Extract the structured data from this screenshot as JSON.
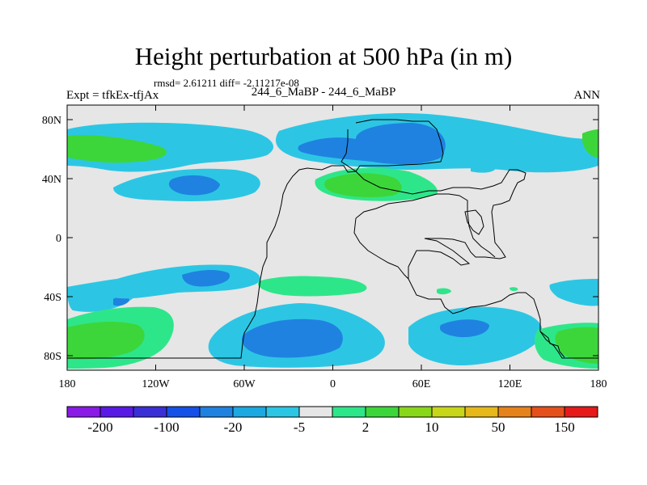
{
  "title": "Height perturbation at 500 hPa (in m)",
  "stats": "rmsd= 2.61211 diff= -2.11217e-08",
  "left_label": "Expt = tfkEx-tfjAx",
  "center_label": "244_6_MaBP - 244_6_MaBP",
  "right_label": "ANN",
  "map": {
    "lat_ticks": [
      "80N",
      "40N",
      "0",
      "40S",
      "80S"
    ],
    "lon_ticks": [
      "180",
      "120W",
      "60W",
      "0",
      "60E",
      "120E",
      "180"
    ],
    "background_color": "#e6e6e6"
  },
  "colorbar": {
    "colors": [
      "#8a1ae6",
      "#5a1ae6",
      "#3a2fd6",
      "#1550e8",
      "#1f82e0",
      "#1ca8e0",
      "#2cc6e4",
      "#e6e6e6",
      "#2ee68a",
      "#3cd63a",
      "#8ad61a",
      "#c8d61a",
      "#e6b81a",
      "#e6821a",
      "#e6501a",
      "#e61a1a"
    ],
    "tick_labels": [
      "-200",
      "-100",
      "-20",
      "-5",
      "2",
      "10",
      "50",
      "150"
    ]
  }
}
